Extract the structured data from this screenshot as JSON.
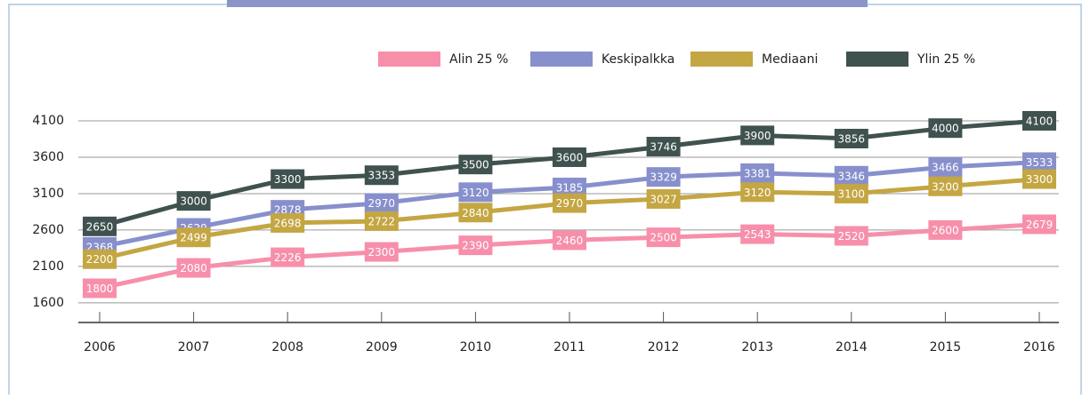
{
  "chart_data": {
    "type": "line",
    "categories": [
      "2006",
      "2007",
      "2008",
      "2009",
      "2010",
      "2011",
      "2012",
      "2013",
      "2014",
      "2015",
      "2016"
    ],
    "series": [
      {
        "name": "Alin 25 %",
        "color": "#f78fab",
        "values": [
          1800,
          2080,
          2226,
          2300,
          2390,
          2460,
          2500,
          2543,
          2520,
          2600,
          2679
        ]
      },
      {
        "name": "Keskipalkka",
        "color": "#8790cc",
        "values": [
          2368,
          2629,
          2878,
          2970,
          3120,
          3185,
          3329,
          3381,
          3346,
          3466,
          3533
        ]
      },
      {
        "name": "Mediaani",
        "color": "#c4a642",
        "values": [
          2200,
          2499,
          2698,
          2722,
          2840,
          2970,
          3027,
          3120,
          3100,
          3200,
          3300
        ]
      },
      {
        "name": "Ylin 25 %",
        "color": "#3f524f",
        "values": [
          2650,
          3000,
          3300,
          3353,
          3500,
          3600,
          3746,
          3900,
          3856,
          4000,
          4100
        ]
      }
    ],
    "ylim": [
      1330,
      4100
    ],
    "yticks": [
      1600,
      2100,
      2600,
      3100,
      3600,
      4100
    ],
    "grid": true,
    "legend": "top"
  }
}
